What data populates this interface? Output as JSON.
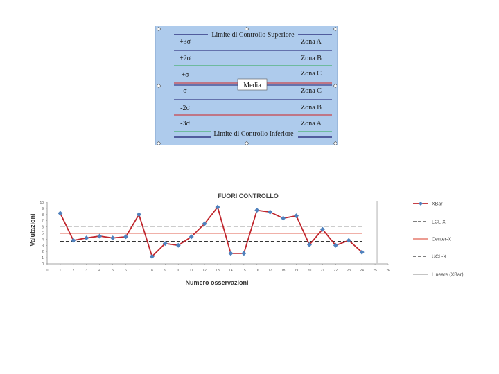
{
  "zone_diagram": {
    "top_label": "Limite di Controllo Superiore",
    "bottom_label": "Limite di Controllo Inferiore",
    "center_label": "Media",
    "rows": [
      {
        "sigma": "+3σ",
        "zone": "Zona A",
        "line": "#1a1a6e"
      },
      {
        "sigma": "+2σ",
        "zone": "Zona B",
        "line": "#2fa84f"
      },
      {
        "sigma": "+σ",
        "zone": "Zona C",
        "line": "#d02020"
      },
      {
        "sigma": "σ",
        "zone": "Zona C",
        "line": "#1a1a6e"
      },
      {
        "sigma": "-2σ",
        "zone": "Zona B",
        "line": "#d02020"
      },
      {
        "sigma": "-3σ",
        "zone": "Zona A",
        "line": "#2fa84f"
      }
    ]
  },
  "chart_data": {
    "type": "line",
    "title": "FUORI CONTROLLO",
    "xlabel": "Numero osservazioni",
    "ylabel": "Valutazioni",
    "xlim": [
      0,
      26
    ],
    "ylim": [
      0,
      10
    ],
    "xticks": [
      "0",
      "1",
      "2",
      "3",
      "4",
      "5",
      "6",
      "7",
      "8",
      "9",
      "10",
      "11",
      "12",
      "13",
      "14",
      "15",
      "16",
      "17",
      "18",
      "19",
      "20",
      "21",
      "22",
      "23",
      "24",
      "25",
      "26"
    ],
    "yticks": [
      "0",
      "1",
      "2",
      "3",
      "4",
      "5",
      "6",
      "7",
      "8",
      "9",
      "10"
    ],
    "grid": false,
    "legend_position": "right",
    "x": [
      1,
      2,
      3,
      4,
      5,
      6,
      7,
      8,
      9,
      10,
      11,
      12,
      13,
      14,
      15,
      16,
      17,
      18,
      19,
      20,
      21,
      22,
      23,
      24
    ],
    "series": [
      {
        "name": "XBar",
        "color": "#c0262d",
        "marker": "diamond",
        "marker_color": "#4f81bd",
        "values": [
          8.2,
          3.8,
          4.2,
          4.5,
          4.2,
          4.4,
          8.0,
          1.2,
          3.3,
          3.0,
          4.4,
          6.5,
          9.2,
          1.7,
          1.7,
          8.7,
          8.4,
          7.4,
          7.8,
          3.1,
          5.6,
          3.0,
          3.8,
          1.9
        ]
      },
      {
        "name": "LCL-X",
        "color": "#333333",
        "style": "dashed-long",
        "constant": 6.1
      },
      {
        "name": "Center-X",
        "color": "#e06050",
        "style": "solid",
        "constant": 4.95
      },
      {
        "name": "UCL-X",
        "color": "#333333",
        "style": "dashed-short",
        "constant": 3.65
      },
      {
        "name": "Lineare (XBar)",
        "color": "#b0b0b0",
        "style": "solid",
        "constant": null
      }
    ]
  }
}
